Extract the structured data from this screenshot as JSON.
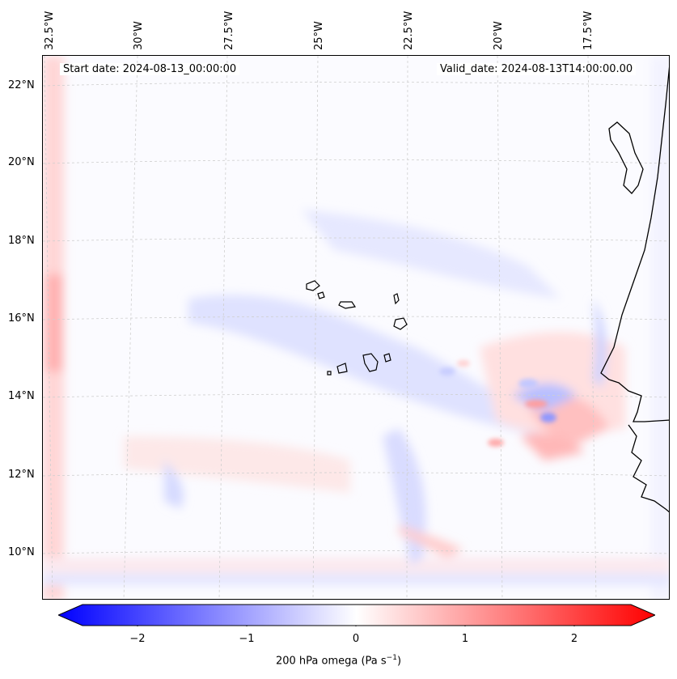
{
  "map": {
    "start_date": "Start date: 2024-08-13_00:00:00",
    "valid_date": "Valid_date: 2024-08-13T14:00:00.00",
    "lon_labels": [
      "32.5°W",
      "30°W",
      "27.5°W",
      "25°W",
      "22.5°W",
      "20°W",
      "17.5°W"
    ],
    "lat_labels": [
      "22°N",
      "20°N",
      "18°N",
      "16°N",
      "14°N",
      "12°N",
      "10°N"
    ],
    "colors": {
      "negative": "#0000ff",
      "zero": "#ffffff",
      "positive": "#ff0000",
      "coast": "#000000"
    }
  },
  "colorbar": {
    "ticks": [
      "−2",
      "−1",
      "0",
      "1",
      "2"
    ],
    "title": "200 hPa omega (Pa s",
    "title_sup": "−1",
    "title_end": ")",
    "range": [
      -2.5,
      2.5
    ]
  }
}
